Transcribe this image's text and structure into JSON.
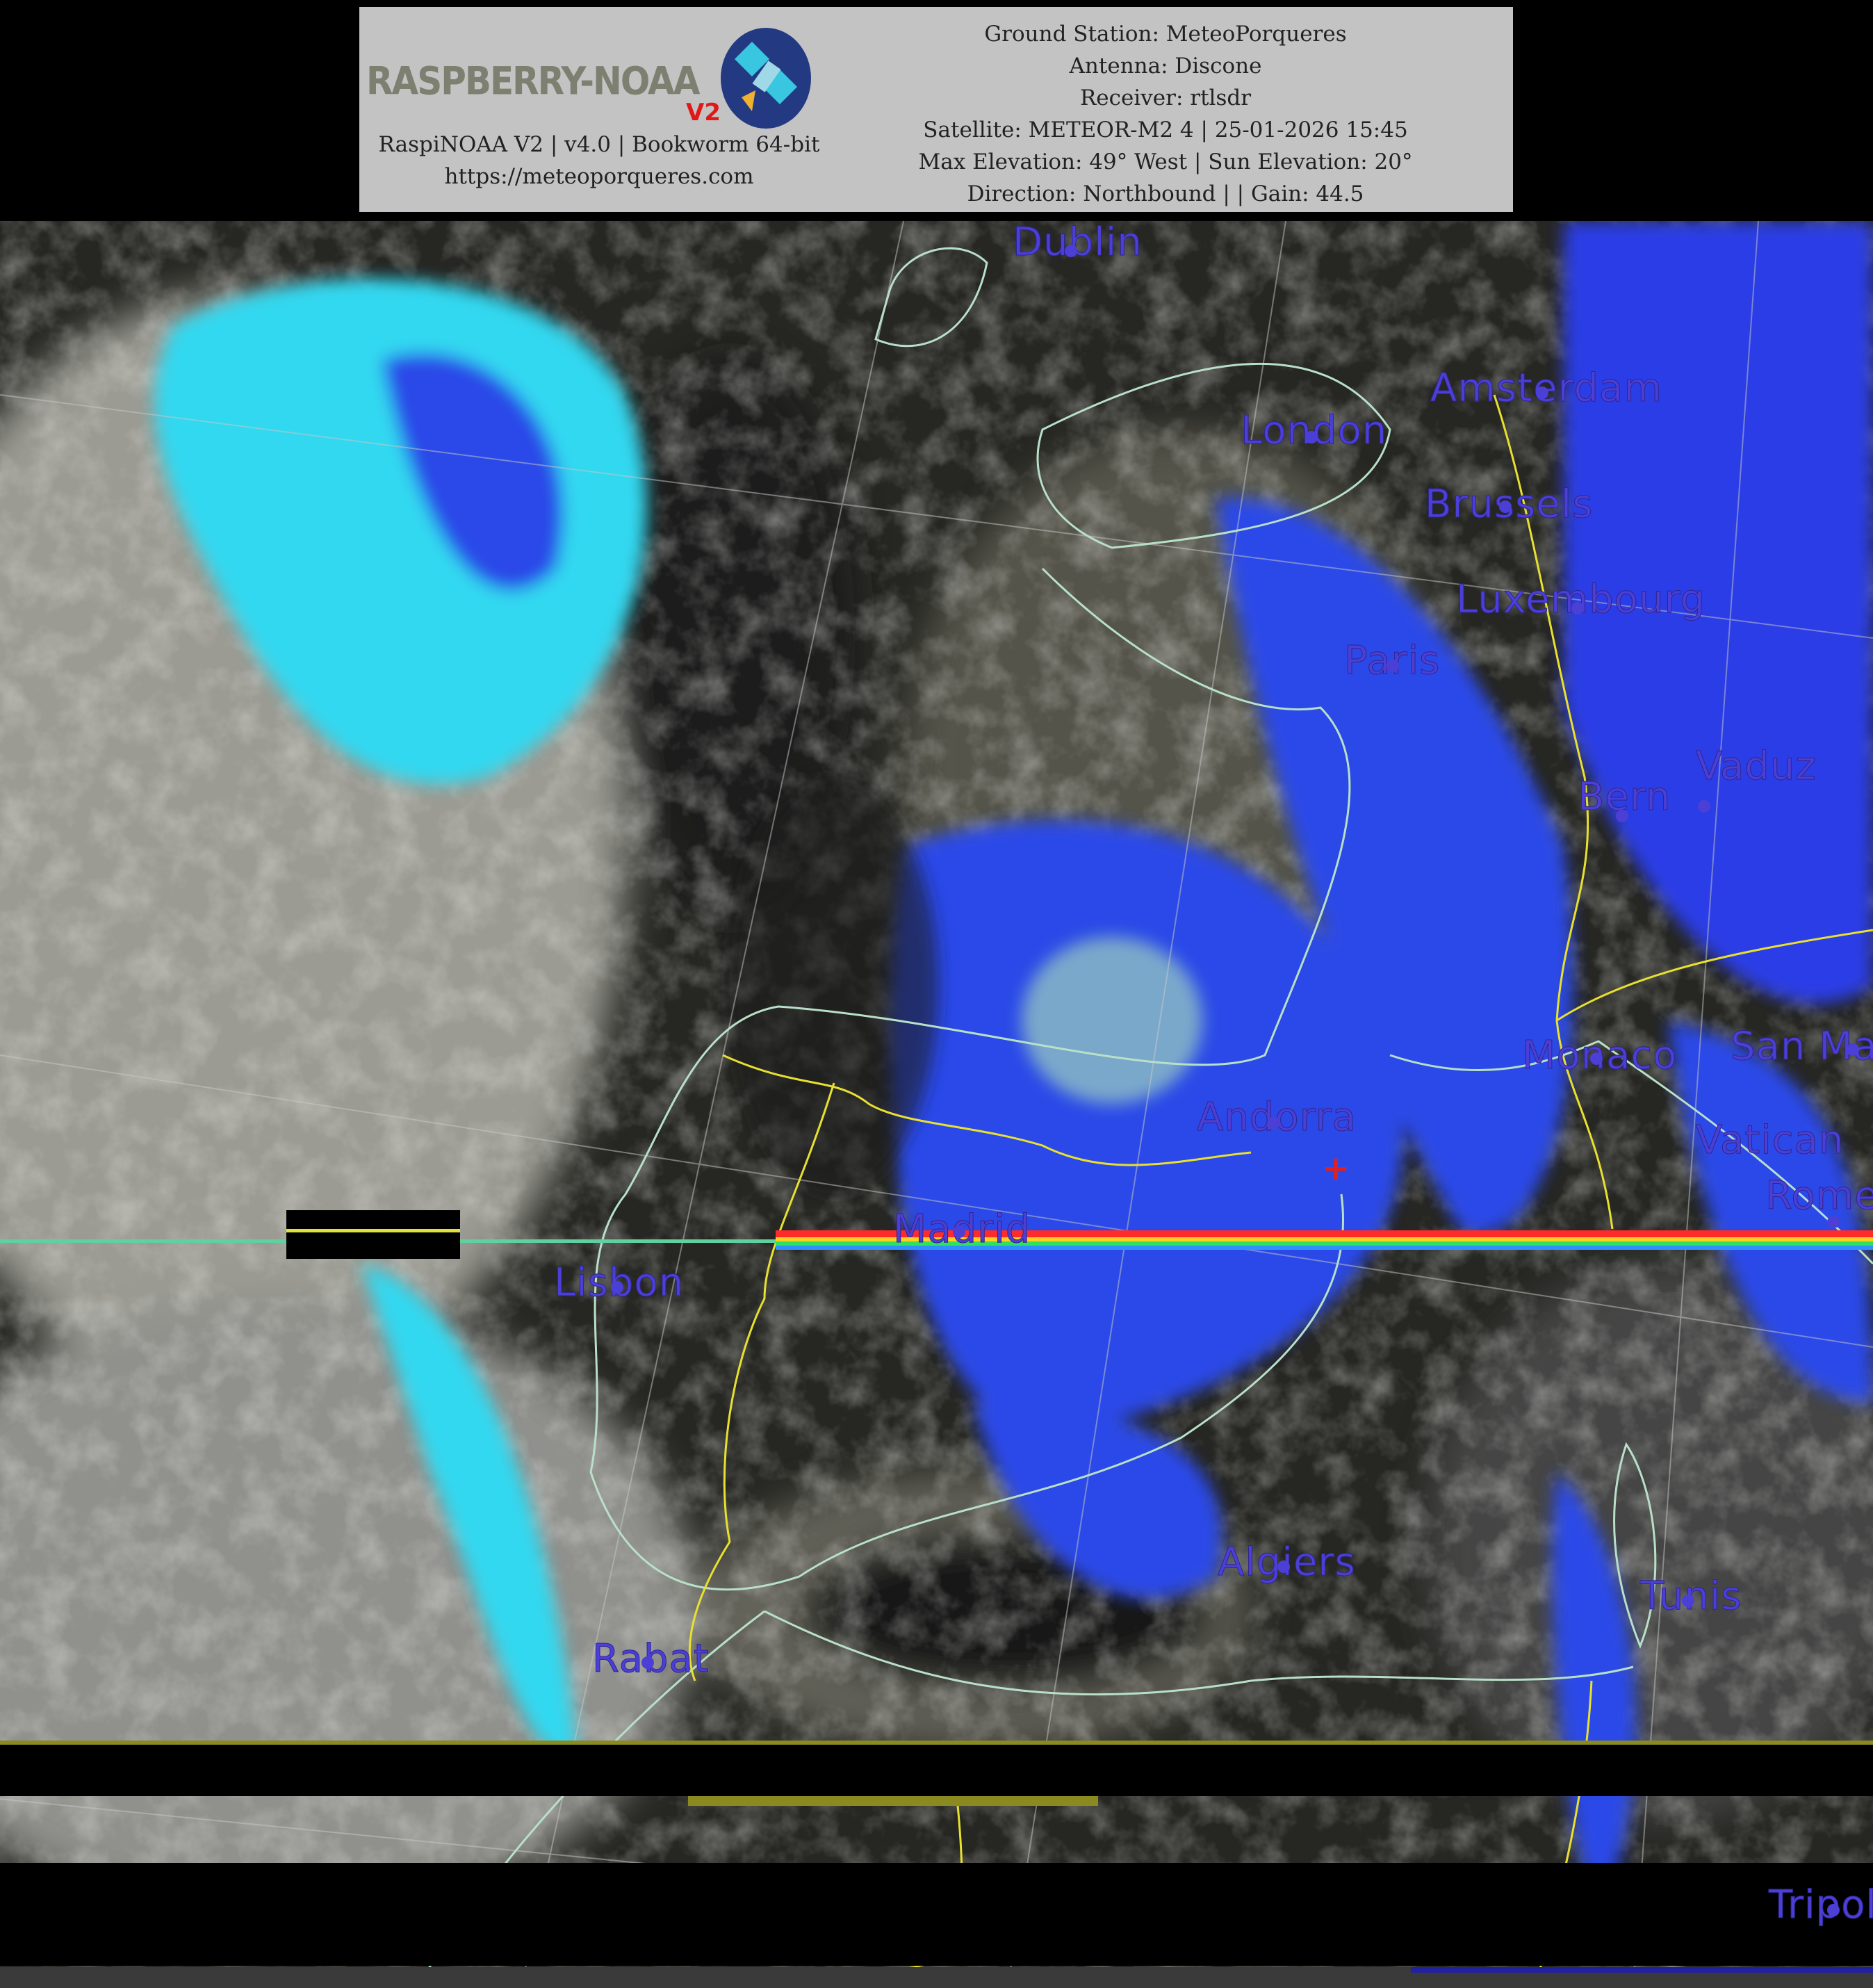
{
  "header": {
    "logo": {
      "text": "RASPBERRY-NOAA",
      "badge": "V2"
    },
    "left_lines": [
      "RaspiNOAA V2 | v4.0 | Bookworm 64-bit",
      "https://meteoporqueres.com"
    ],
    "right_lines": [
      "Ground Station: MeteoPorqueres",
      "Antenna: Discone",
      "Receiver: rtlsdr",
      "Satellite: METEOR-M2 4 | 25-01-2026 15:45",
      "Max Elevation: 49° West | Sun Elevation: 20°",
      "Direction: Northbound | | Gain: 44.5"
    ]
  },
  "map": {
    "colors": {
      "city": "#4b3fd6",
      "border": "#e8e030",
      "coast": "#b8e0c8",
      "precip_light": "#30e0f0",
      "precip_heavy": "#2838e8",
      "station": "#e02020"
    },
    "station_marker_icon": "red-cross",
    "cities": [
      {
        "name": "Dublin"
      },
      {
        "name": "Amsterdam"
      },
      {
        "name": "London"
      },
      {
        "name": "Brussels"
      },
      {
        "name": "Luxembourg"
      },
      {
        "name": "Paris"
      },
      {
        "name": "Bern"
      },
      {
        "name": "Vaduz"
      },
      {
        "name": "Monaco"
      },
      {
        "name": "San Marino"
      },
      {
        "name": "Andorra"
      },
      {
        "name": "Madrid"
      },
      {
        "name": "Lisbon"
      },
      {
        "name": "Vatican"
      },
      {
        "name": "Rome"
      },
      {
        "name": "Algiers"
      },
      {
        "name": "Tunis"
      },
      {
        "name": "Rabat"
      },
      {
        "name": "Tripoli"
      }
    ]
  }
}
